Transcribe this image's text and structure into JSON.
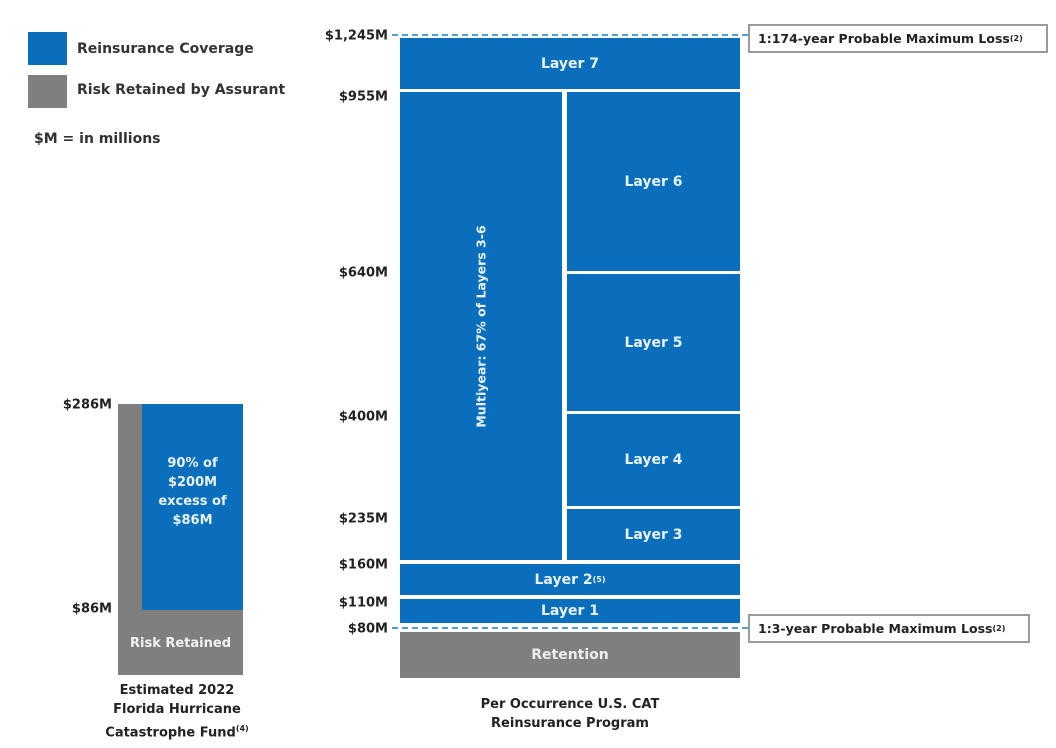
{
  "legend": {
    "items": [
      {
        "label": "Reinsurance Coverage",
        "color": "#0a6ebd"
      },
      {
        "label": "Risk Retained by Assurant",
        "color": "#7f7f7f"
      }
    ],
    "note": "$M = in millions"
  },
  "fhcf": {
    "y_labels": {
      "top": "$286M",
      "bottom": "$86M"
    },
    "coverage_text": [
      "90% of",
      "$200M",
      "excess of",
      "$86M"
    ],
    "retained_label": "Risk Retained",
    "caption": [
      "Estimated 2022",
      "Florida Hurricane",
      "Catastrophe Fund"
    ],
    "caption_footnote": "(4)"
  },
  "program": {
    "y_labels": [
      "$1,245M",
      "$955M",
      "$640M",
      "$400M",
      "$235M",
      "$160M",
      "$110M",
      "$80M"
    ],
    "layers": {
      "layer7": "Layer 7",
      "layer6": "Layer 6",
      "layer5": "Layer 5",
      "layer4": "Layer 4",
      "layer3": "Layer 3",
      "layer2": "Layer 2",
      "layer2_footnote": "(5)",
      "layer1": "Layer 1",
      "retention": "Retention",
      "multiyear": "Multiyear: 67% of Layers 3-6"
    },
    "pml_top": {
      "text": "1:174-year Probable Maximum Loss",
      "footnote": "(2)"
    },
    "pml_bottom": {
      "text": "1:3-year Probable Maximum Loss",
      "footnote": "(2)"
    },
    "caption": [
      "Per Occurrence U.S. CAT",
      "Reinsurance Program"
    ]
  }
}
